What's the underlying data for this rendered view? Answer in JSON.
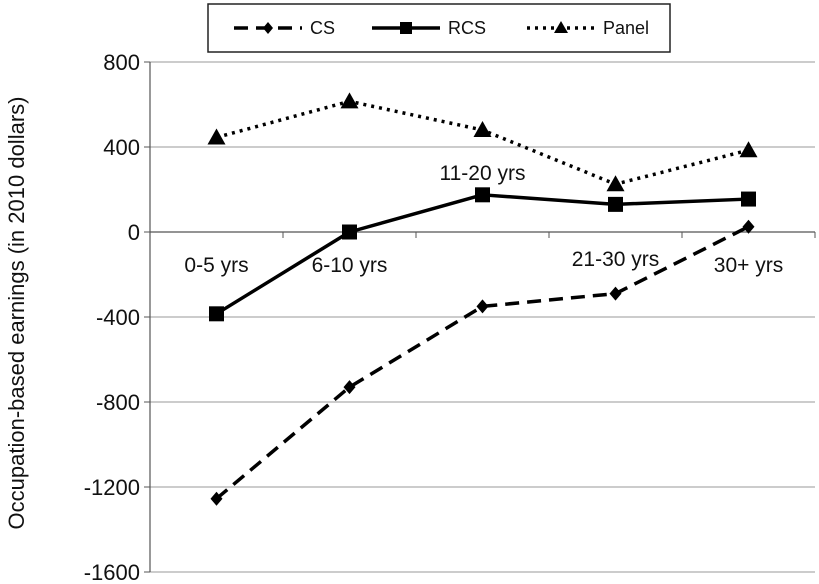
{
  "chart_data": {
    "type": "line",
    "ylabel": "Occupation-based earnings (in 2010 dollars)",
    "xlabel": "",
    "ylim": [
      -1600,
      800
    ],
    "yticks": [
      800,
      400,
      0,
      -400,
      -800,
      -1200,
      -1600
    ],
    "categories": [
      "0-5 yrs",
      "6-10 yrs",
      "11-20 yrs",
      "21-30 yrs",
      "30+ yrs"
    ],
    "legend_position": "top",
    "grid": "horizontal",
    "series": [
      {
        "name": "CS",
        "style": "dashed",
        "marker": "diamond",
        "color": "#000000",
        "values": [
          -1255,
          -730,
          -350,
          -290,
          25
        ]
      },
      {
        "name": "RCS",
        "style": "solid",
        "marker": "square",
        "color": "#000000",
        "values": [
          -385,
          0,
          175,
          130,
          155
        ]
      },
      {
        "name": "Panel",
        "style": "dotted",
        "marker": "triangle",
        "color": "#000000",
        "values": [
          445,
          615,
          480,
          225,
          385
        ]
      }
    ]
  }
}
